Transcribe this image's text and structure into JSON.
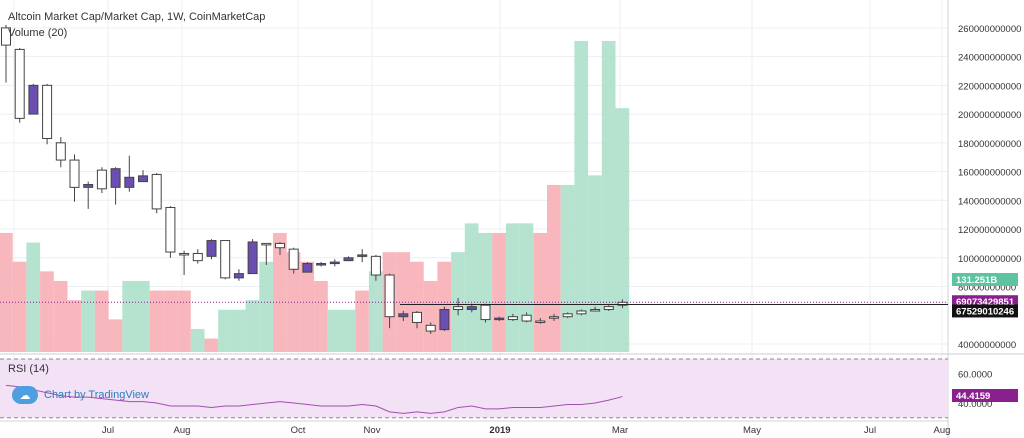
{
  "chart_data": {
    "type": "candlestick",
    "title": "Altcoin Market Cap/Market Cap, 1W, CoinMarketCap",
    "volume_label": "Volume (20)",
    "rsi_label": "RSI (14)",
    "watermark": "Chart by TradingView",
    "price_ticks": [
      "260000000000",
      "240000000000",
      "220000000000",
      "200000000000",
      "180000000000",
      "160000000000",
      "140000000000",
      "120000000000",
      "100000000000",
      "80000000000",
      "40000000000"
    ],
    "x_ticks": [
      "Jul",
      "Aug",
      "Oct",
      "Nov",
      "2019",
      "Mar",
      "May",
      "Jul",
      "Aug"
    ],
    "rsi_ticks": [
      "60.0000",
      "40.0000"
    ],
    "rsi_levels": [
      70,
      30
    ],
    "labels": {
      "volume_last": "131.251B",
      "price_last": "69073429851",
      "price_crosshair": "67529010246",
      "rsi_last": "44.4159"
    },
    "colors": {
      "up": "#ffffff",
      "down": "#6a4fb0",
      "wick": "#444444",
      "vol_up": "#a8dec7",
      "vol_down": "#f7aab2",
      "rsi_line": "#a24fb0",
      "rsi_fill": "#f3e2f5",
      "price_badge": "#8a1f8e",
      "vol_badge": "#5cc4a0",
      "crosshair_badge": "#111111"
    },
    "candles": [
      {
        "o": 248,
        "h": 262,
        "l": 222,
        "c": 260
      },
      {
        "o": 197,
        "h": 246,
        "l": 194,
        "c": 245
      },
      {
        "o": 220,
        "h": 221,
        "l": 200,
        "c": 200
      },
      {
        "o": 183,
        "h": 221,
        "l": 179,
        "c": 220
      },
      {
        "o": 168,
        "h": 184,
        "l": 163,
        "c": 180
      },
      {
        "o": 149,
        "h": 172,
        "l": 139,
        "c": 168
      },
      {
        "o": 151,
        "h": 153,
        "l": 134,
        "c": 149
      },
      {
        "o": 148,
        "h": 163,
        "l": 145,
        "c": 161
      },
      {
        "o": 162,
        "h": 163,
        "l": 137,
        "c": 149
      },
      {
        "o": 156,
        "h": 171,
        "l": 146,
        "c": 149
      },
      {
        "o": 157,
        "h": 161,
        "l": 154,
        "c": 153
      },
      {
        "o": 134,
        "h": 159,
        "l": 131,
        "c": 158
      },
      {
        "o": 104,
        "h": 136,
        "l": 100,
        "c": 135
      },
      {
        "o": 103,
        "h": 105,
        "l": 88,
        "c": 103
      },
      {
        "o": 98,
        "h": 106,
        "l": 96,
        "c": 103
      },
      {
        "o": 112,
        "h": 113,
        "l": 99,
        "c": 101
      },
      {
        "o": 86,
        "h": 112,
        "l": 85,
        "c": 112
      },
      {
        "o": 89,
        "h": 92,
        "l": 84,
        "c": 86
      },
      {
        "o": 111,
        "h": 113,
        "l": 89,
        "c": 89
      },
      {
        "o": 109,
        "h": 110,
        "l": 95,
        "c": 110
      },
      {
        "o": 107,
        "h": 111,
        "l": 102,
        "c": 110
      },
      {
        "o": 92,
        "h": 107,
        "l": 89,
        "c": 106
      },
      {
        "o": 96,
        "h": 97,
        "l": 90,
        "c": 90
      },
      {
        "o": 96,
        "h": 97,
        "l": 94,
        "c": 95
      },
      {
        "o": 97,
        "h": 99,
        "l": 94,
        "c": 96
      },
      {
        "o": 100,
        "h": 101,
        "l": 98,
        "c": 98
      },
      {
        "o": 102,
        "h": 106,
        "l": 97,
        "c": 101
      },
      {
        "o": 88,
        "h": 102,
        "l": 84,
        "c": 101
      },
      {
        "o": 59,
        "h": 89,
        "l": 51,
        "c": 88
      },
      {
        "o": 61,
        "h": 63,
        "l": 56,
        "c": 59
      },
      {
        "o": 55,
        "h": 63,
        "l": 51,
        "c": 62
      },
      {
        "o": 49,
        "h": 55,
        "l": 47,
        "c": 53
      },
      {
        "o": 64,
        "h": 66,
        "l": 49,
        "c": 50
      },
      {
        "o": 64,
        "h": 72,
        "l": 60,
        "c": 66
      },
      {
        "o": 66,
        "h": 68,
        "l": 62,
        "c": 64
      },
      {
        "o": 57,
        "h": 68,
        "l": 55,
        "c": 67
      },
      {
        "o": 58,
        "h": 59,
        "l": 56,
        "c": 57
      },
      {
        "o": 57,
        "h": 61,
        "l": 56,
        "c": 59
      },
      {
        "o": 56,
        "h": 62,
        "l": 55,
        "c": 60
      },
      {
        "o": 55,
        "h": 58,
        "l": 54,
        "c": 56
      },
      {
        "o": 59,
        "h": 61,
        "l": 56,
        "c": 59
      },
      {
        "o": 59,
        "h": 62,
        "l": 58,
        "c": 61
      },
      {
        "o": 61,
        "h": 64,
        "l": 60,
        "c": 63
      },
      {
        "o": 64,
        "h": 66,
        "l": 63,
        "c": 64
      },
      {
        "o": 64,
        "h": 67,
        "l": 63,
        "c": 66
      },
      {
        "o": 67,
        "h": 71,
        "l": 65,
        "c": 69
      }
    ],
    "volume": [
      {
        "v": 100,
        "up": false
      },
      {
        "v": 97,
        "up": false
      },
      {
        "v": 99,
        "up": true
      },
      {
        "v": 96,
        "up": false
      },
      {
        "v": 95,
        "up": false
      },
      {
        "v": 93,
        "up": false
      },
      {
        "v": 94,
        "up": true
      },
      {
        "v": 94,
        "up": false
      },
      {
        "v": 91,
        "up": false
      },
      {
        "v": 95,
        "up": true
      },
      {
        "v": 95,
        "up": true
      },
      {
        "v": 94,
        "up": false
      },
      {
        "v": 94,
        "up": false
      },
      {
        "v": 94,
        "up": false
      },
      {
        "v": 90,
        "up": true
      },
      {
        "v": 89,
        "up": false
      },
      {
        "v": 92,
        "up": true
      },
      {
        "v": 92,
        "up": true
      },
      {
        "v": 93,
        "up": true
      },
      {
        "v": 97,
        "up": true
      },
      {
        "v": 100,
        "up": false
      },
      {
        "v": 98,
        "up": false
      },
      {
        "v": 97,
        "up": false
      },
      {
        "v": 95,
        "up": false
      },
      {
        "v": 92,
        "up": true
      },
      {
        "v": 92,
        "up": true
      },
      {
        "v": 94,
        "up": false
      },
      {
        "v": 96,
        "up": true
      },
      {
        "v": 98,
        "up": false
      },
      {
        "v": 98,
        "up": false
      },
      {
        "v": 97,
        "up": false
      },
      {
        "v": 95,
        "up": false
      },
      {
        "v": 97,
        "up": false
      },
      {
        "v": 98,
        "up": true
      },
      {
        "v": 101,
        "up": true
      },
      {
        "v": 100,
        "up": true
      },
      {
        "v": 100,
        "up": false
      },
      {
        "v": 101,
        "up": true
      },
      {
        "v": 101,
        "up": true
      },
      {
        "v": 100,
        "up": false
      },
      {
        "v": 105,
        "up": false
      },
      {
        "v": 105,
        "up": true
      },
      {
        "v": 120,
        "up": true
      },
      {
        "v": 106,
        "up": true
      },
      {
        "v": 120,
        "up": true
      },
      {
        "v": 113,
        "up": true
      }
    ],
    "rsi": [
      52,
      51,
      49,
      47,
      45,
      44,
      44,
      43,
      42,
      41,
      41,
      40,
      38,
      38,
      38,
      37,
      38,
      38,
      39,
      40,
      41,
      40,
      39,
      38,
      38,
      38,
      39,
      38,
      34,
      33,
      34,
      33,
      34,
      37,
      38,
      36,
      36,
      37,
      37,
      37,
      38,
      39,
      39,
      40,
      42,
      44.4
    ]
  }
}
